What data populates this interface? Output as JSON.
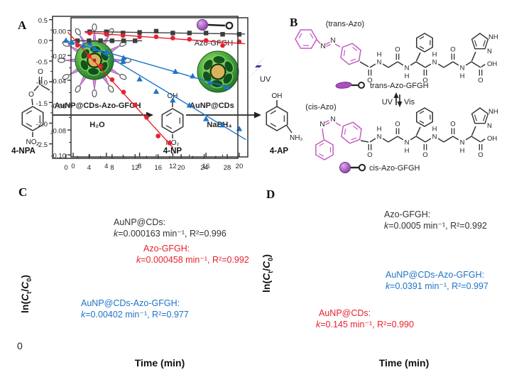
{
  "colors": {
    "text": "#222222",
    "dark": "#3d3d3d",
    "red": "#e8212e",
    "blue": "#1e74c8",
    "magenta": "#c45ac4",
    "purple": "#43339c",
    "green": "#3aa345",
    "gold": "#d9b35c",
    "lilac": "#cf93d8"
  },
  "panel_a": {
    "label": "A",
    "npa_label": "4-NPA",
    "np_label": "4-NP",
    "ap_label": "4-AP",
    "arrow1_cat_black": "AuNP@CDs-",
    "arrow1_cat_red": "Azo-GFGH",
    "arrow1_below": "H₂O",
    "arrow2_cat_red": "AuNP",
    "arrow2_cat_black": "@CDs",
    "arrow2_below": "NaBH₄",
    "azo_icon_label": "Azo-GFGH",
    "uv_label": "UV",
    "atoms": {
      "O": "O",
      "OH": "OH",
      "NO2": "NO₂",
      "NH2": "NH₂"
    }
  },
  "panel_b": {
    "label": "B",
    "trans_tag": "(trans-Azo)",
    "cis_tag": "(cis-Azo)",
    "trans_name": "trans-Azo-GFGH",
    "cis_name": "cis-Azo-GFGH",
    "uv": "UV",
    "vis": "Vis",
    "atoms": {
      "N": "N",
      "H": "H",
      "O": "O",
      "OH": "OH",
      "NH": "NH"
    }
  },
  "panel_c": {
    "label": "C",
    "xlabel": "Time (min)",
    "ylabel": {
      "pre": "ln(",
      "c1": "C",
      "sub1": "t",
      "slash": "/",
      "c2": "C",
      "sub2": "0",
      "post": ")"
    },
    "stray_zero": "0"
  },
  "panel_d": {
    "label": "D",
    "xlabel": "Time (min)",
    "ylabel": {
      "pre": "ln(",
      "c1": "C",
      "sub1": "t",
      "slash": "/",
      "c2": "C",
      "sub2": "0",
      "post": ")"
    }
  },
  "chart_data": [
    {
      "id": "C",
      "type": "scatter",
      "title": "",
      "xlabel": "Time (min)",
      "ylabel": "ln(Ct/C0)",
      "grid": false,
      "legend_position": "in-plot annotations",
      "xlim": [
        -0.26,
        21.03
      ],
      "ylim": [
        -0.1017,
        0.0103
      ],
      "xticks": [
        {
          "v": 0,
          "t": "0"
        },
        {
          "v": 4,
          "t": "4"
        },
        {
          "v": 8,
          "t": "8"
        },
        {
          "v": 12,
          "t": "12"
        },
        {
          "v": 16,
          "t": "16"
        },
        {
          "v": 20,
          "t": "20"
        }
      ],
      "xminor": [
        2,
        6,
        10,
        14,
        18
      ],
      "yticks": [
        {
          "v": 0,
          "t": "0.00"
        },
        {
          "v": -0.02,
          "t": "-0.02"
        },
        {
          "v": -0.04,
          "t": "-0.04"
        },
        {
          "v": -0.06,
          "t": "-0.06"
        },
        {
          "v": -0.08,
          "t": "-0.08"
        },
        {
          "v": -0.1,
          "t": "-0.10"
        }
      ],
      "yminor": [
        -0.01,
        -0.03,
        -0.05,
        -0.07,
        -0.09
      ],
      "series": [
        {
          "name": "AuNP@CDs",
          "marker": "square",
          "color": "#3d3d3d",
          "x": [
            2,
            4,
            6,
            8,
            10,
            12,
            14,
            16,
            18,
            20
          ],
          "y": [
            -0.001,
            -0.001,
            -0.002,
            -0.0015,
            -0.0005,
            -0.002,
            -0.002,
            -0.002,
            -0.003,
            -0.003
          ],
          "fit_x": [
            1.4,
            20.7
          ],
          "k": "0.000163 min⁻¹",
          "r2": "0.996"
        },
        {
          "name": "Azo-GFGH",
          "marker": "circle",
          "color": "#e8212e",
          "x": [
            2,
            4,
            6,
            8,
            10,
            12,
            14,
            16,
            18,
            20
          ],
          "y": [
            -0.002,
            -0.003,
            -0.004,
            -0.005,
            -0.005,
            -0.006,
            -0.007,
            -0.008,
            -0.012,
            -0.009
          ],
          "fit_x": [
            1.4,
            20.7
          ],
          "k": "0.000458 min⁻¹",
          "r2": "0.992"
        },
        {
          "name": "AuNP@CDs-Azo-GFGH",
          "marker": "triangle",
          "color": "#1e74c8",
          "x": [
            2,
            4,
            6,
            8,
            10,
            12,
            14,
            16,
            18,
            20
          ],
          "y": [
            -0.01,
            -0.017,
            -0.025,
            -0.039,
            -0.049,
            -0.056,
            -0.06,
            -0.071,
            -0.076,
            -0.079
          ],
          "fit_x": [
            1.8,
            20.8
          ],
          "k": "0.00402 min⁻¹",
          "r2": "0.977"
        }
      ],
      "annotations": [
        {
          "title": "AuNP@CDs:",
          "k": "k",
          "eq": "=0.000163 min⁻¹, R²=0.996",
          "color": "#333333"
        },
        {
          "title": "Azo-GFGH:",
          "k": "k",
          "eq": "=0.000458 min⁻¹, R²=0.992",
          "color": "#e8212e"
        },
        {
          "title": "AuNP@CDs-Azo-GFGH:",
          "k": "k",
          "eq": "=0.00402 min⁻¹, R²=0.977",
          "color": "#1e74c8"
        }
      ]
    },
    {
      "id": "D",
      "type": "scatter",
      "title": "",
      "xlabel": "Time (min)",
      "ylabel": "ln(Ct/C0)",
      "grid": false,
      "legend_position": "in-plot annotations",
      "xlim": [
        -2.34,
        29.85
      ],
      "ylim": [
        -2.85,
        0.58
      ],
      "xticks": [
        {
          "v": 0,
          "t": "0"
        },
        {
          "v": 4,
          "t": "4"
        },
        {
          "v": 8,
          "t": "8"
        },
        {
          "v": 12,
          "t": "12"
        },
        {
          "v": 16,
          "t": "16"
        },
        {
          "v": 20,
          "t": "20"
        },
        {
          "v": 24,
          "t": "24"
        },
        {
          "v": 28,
          "t": "28"
        }
      ],
      "xminor": [
        2,
        6,
        10,
        14,
        18,
        22,
        26
      ],
      "yticks": [
        {
          "v": 0.5,
          "t": "0.5"
        },
        {
          "v": 0.0,
          "t": "0.0"
        },
        {
          "v": -0.5,
          "t": "-0.5"
        },
        {
          "v": -1.0,
          "t": "-1.0"
        },
        {
          "v": -1.5,
          "t": "-1.5"
        },
        {
          "v": -2.0,
          "t": "-2.0"
        },
        {
          "v": -2.5,
          "t": "-2.5"
        }
      ],
      "yminor": [
        0.25,
        -0.25,
        -0.75,
        -1.25,
        -1.75,
        -2.25
      ],
      "series": [
        {
          "name": "Azo-GFGH",
          "marker": "square",
          "color": "#3d3d3d",
          "x": [
            2,
            4,
            6,
            8,
            10,
            12
          ],
          "y": [
            -0.01,
            -0.01,
            -0.01,
            -0.01,
            -0.01,
            -0.01
          ],
          "fit_x": [
            1.0,
            13.2
          ],
          "k": "0.0005 min⁻¹",
          "r2": "0.992"
        },
        {
          "name": "AuNP@CDs-Azo-GFGH",
          "marker": "triangle",
          "color": "#1e74c8",
          "x": [
            0,
            1,
            3,
            5,
            7,
            10,
            19,
            22,
            25,
            28
          ],
          "y": [
            0.0,
            -0.05,
            -0.12,
            -0.2,
            -0.29,
            -0.42,
            -0.75,
            -0.86,
            -1.02,
            -1.13
          ],
          "fit_x": [
            -0.3,
            28.5
          ],
          "k": "0.0391 min⁻¹",
          "r2": "0.997"
        },
        {
          "name": "AuNP@CDs",
          "marker": "circle",
          "color": "#e8212e",
          "x": [
            2,
            4,
            6,
            8,
            10,
            12,
            14,
            16,
            18
          ],
          "y": [
            -0.12,
            -0.38,
            -0.63,
            -0.95,
            -1.25,
            -1.56,
            -1.86,
            -2.31,
            -2.48
          ],
          "fit_x": [
            0.3,
            18.6
          ],
          "k": "0.145 min⁻¹",
          "r2": "0.990"
        }
      ],
      "annotations": [
        {
          "title": "Azo-GFGH:",
          "k": "k",
          "eq": "=0.0005 min⁻¹, R²=0.992",
          "color": "#333333"
        },
        {
          "title": "AuNP@CDs-Azo-GFGH:",
          "k": "k",
          "eq": "=0.0391 min⁻¹, R²=0.997",
          "color": "#1e74c8"
        },
        {
          "title": "AuNP@CDs:",
          "k": "k",
          "eq": "=0.145 min⁻¹, R²=0.990",
          "color": "#e8212e"
        }
      ]
    }
  ]
}
